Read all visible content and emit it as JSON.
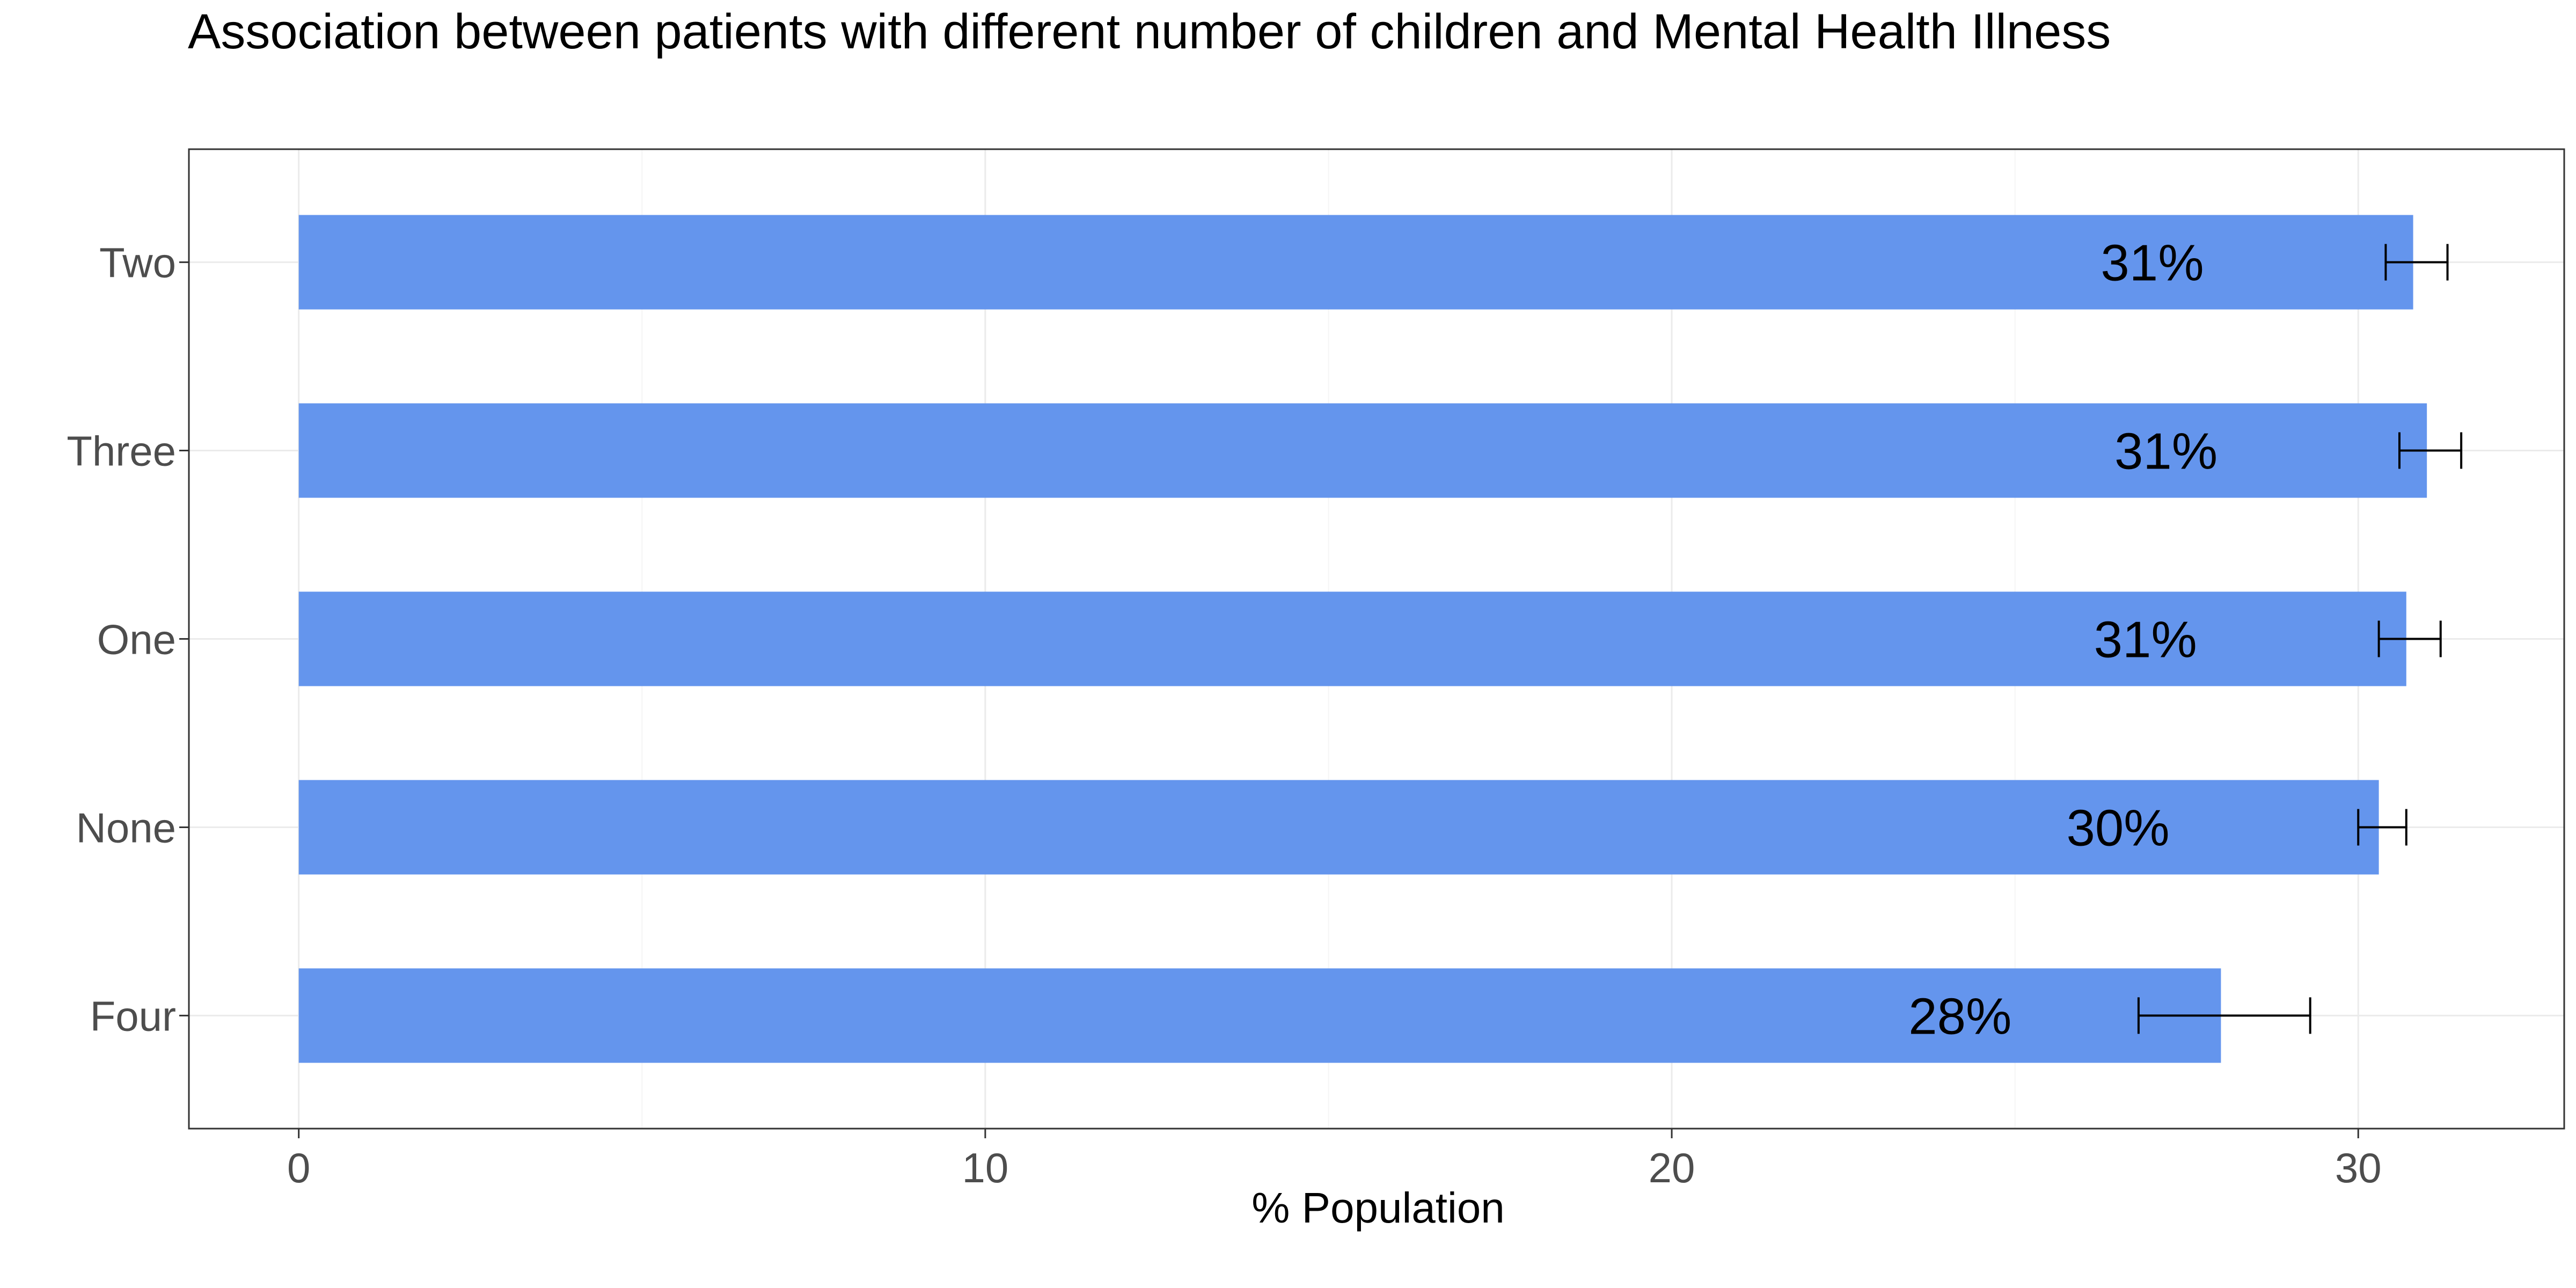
{
  "chart_data": {
    "type": "bar",
    "orientation": "horizontal",
    "title": "Association between patients with different number of children and Mental Health Illness",
    "xlabel": "% Population",
    "ylabel": "",
    "categories": [
      "Two",
      "Three",
      "One",
      "None",
      "Four"
    ],
    "values": [
      30.8,
      31.0,
      30.7,
      30.3,
      28.0
    ],
    "labels": [
      "31%",
      "31%",
      "31%",
      "30%",
      "28%"
    ],
    "error_bars": [
      {
        "low": 30.4,
        "high": 31.3
      },
      {
        "low": 30.6,
        "high": 31.5
      },
      {
        "low": 30.3,
        "high": 31.2
      },
      {
        "low": 30.0,
        "high": 30.7
      },
      {
        "low": 26.8,
        "high": 29.3
      }
    ],
    "x_ticks": [
      0,
      10,
      20,
      30
    ],
    "x_tick_labels": [
      "0",
      "10",
      "20",
      "30"
    ],
    "xlim": [
      -1.6,
      33.0
    ],
    "grid": true,
    "legend": "none",
    "colors": {
      "bar": "#6495ED",
      "error_bar": "#000000",
      "grid_major": "#ebebeb",
      "grid_minor": "#f5f5f5",
      "panel_border": "#333333"
    }
  }
}
